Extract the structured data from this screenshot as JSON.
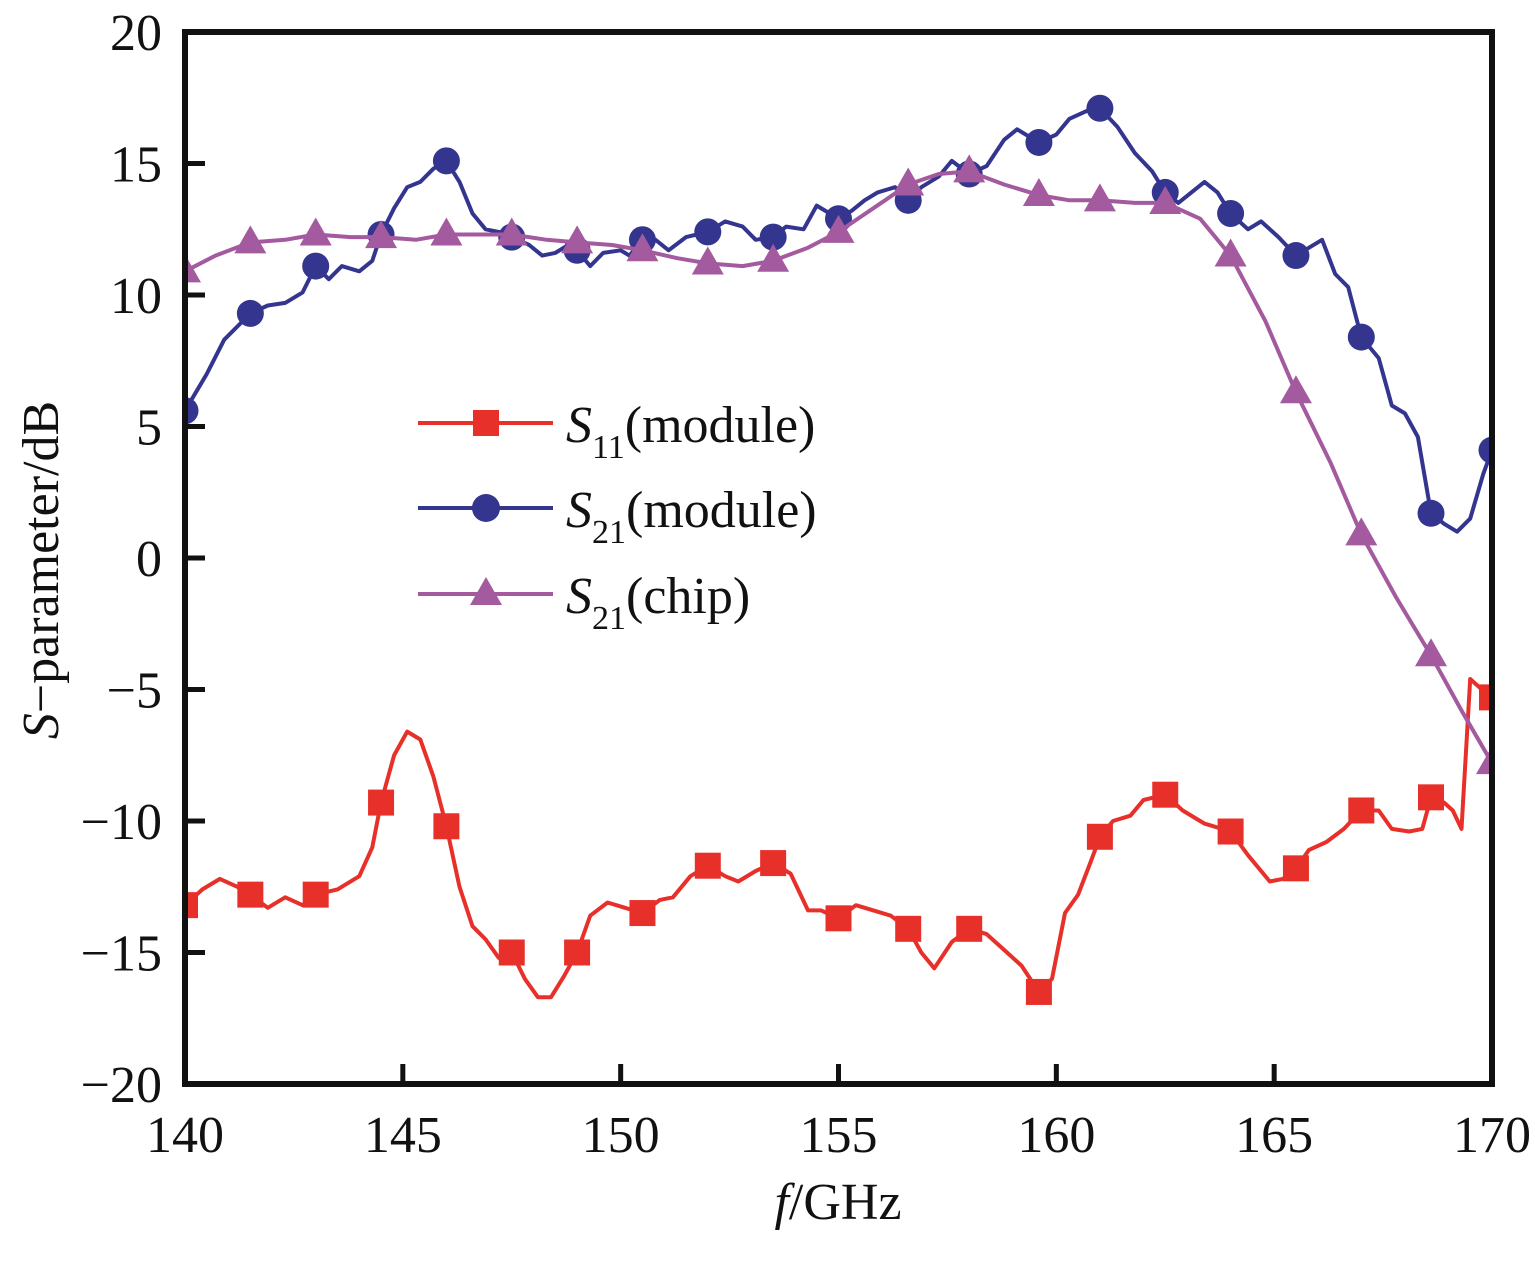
{
  "chart_data": {
    "type": "line",
    "xlabel": {
      "italic": "f",
      "rest": "/GHz"
    },
    "ylabel": {
      "italic": "S",
      "rest": "−parameter/dB"
    },
    "xlim": [
      140,
      170
    ],
    "ylim": [
      -20,
      20
    ],
    "xticks": [
      "140",
      "145",
      "150",
      "155",
      "160",
      "165",
      "170"
    ],
    "yticks": [
      "20",
      "15",
      "10",
      "5",
      "0",
      "−5",
      "−10",
      "−15",
      "−20"
    ],
    "legend_position": "center-left",
    "series": [
      {
        "name": "S11(module)",
        "legend": {
          "main": "S",
          "sub": "11",
          "suffix": "(module)"
        },
        "color": "#e8302a",
        "marker": "square",
        "points": [
          [
            140,
            -13.2
          ],
          [
            140.4,
            -12.6
          ],
          [
            140.8,
            -12.2
          ],
          [
            141.2,
            -12.5
          ],
          [
            141.5,
            -12.8
          ],
          [
            141.9,
            -13.3
          ],
          [
            142.3,
            -12.9
          ],
          [
            142.7,
            -13.2
          ],
          [
            143,
            -12.8
          ],
          [
            143.5,
            -12.6
          ],
          [
            144,
            -12.1
          ],
          [
            144.3,
            -11
          ],
          [
            144.5,
            -9.3
          ],
          [
            144.8,
            -7.5
          ],
          [
            145.1,
            -6.6
          ],
          [
            145.4,
            -6.9
          ],
          [
            145.7,
            -8.3
          ],
          [
            146,
            -10.2
          ],
          [
            146.3,
            -12.5
          ],
          [
            146.6,
            -14
          ],
          [
            146.9,
            -14.5
          ],
          [
            147.2,
            -15.2
          ],
          [
            147.5,
            -15
          ],
          [
            147.8,
            -16
          ],
          [
            148.1,
            -16.7
          ],
          [
            148.4,
            -16.7
          ],
          [
            148.7,
            -15.9
          ],
          [
            149,
            -15
          ],
          [
            149.3,
            -13.6
          ],
          [
            149.7,
            -13.1
          ],
          [
            150.1,
            -13.3
          ],
          [
            150.5,
            -13.5
          ],
          [
            150.9,
            -13
          ],
          [
            151.2,
            -12.9
          ],
          [
            151.6,
            -12.1
          ],
          [
            152,
            -11.7
          ],
          [
            152.4,
            -12.1
          ],
          [
            152.7,
            -12.3
          ],
          [
            153.1,
            -11.9
          ],
          [
            153.5,
            -11.6
          ],
          [
            153.9,
            -12
          ],
          [
            154.3,
            -13.4
          ],
          [
            154.6,
            -13.4
          ],
          [
            155,
            -13.7
          ],
          [
            155.4,
            -13.2
          ],
          [
            155.8,
            -13.4
          ],
          [
            156.2,
            -13.6
          ],
          [
            156.6,
            -14.1
          ],
          [
            156.9,
            -15
          ],
          [
            157.2,
            -15.6
          ],
          [
            157.6,
            -14.6
          ],
          [
            158,
            -14.1
          ],
          [
            158.4,
            -14.3
          ],
          [
            158.8,
            -14.9
          ],
          [
            159.2,
            -15.5
          ],
          [
            159.6,
            -16.5
          ],
          [
            159.9,
            -16
          ],
          [
            160.2,
            -13.5
          ],
          [
            160.5,
            -12.8
          ],
          [
            160.8,
            -11.5
          ],
          [
            161,
            -10.6
          ],
          [
            161.3,
            -10
          ],
          [
            161.7,
            -9.8
          ],
          [
            162,
            -9.2
          ],
          [
            162.5,
            -9
          ],
          [
            162.9,
            -9.6
          ],
          [
            163.4,
            -10.1
          ],
          [
            164,
            -10.4
          ],
          [
            164.4,
            -11.3
          ],
          [
            164.9,
            -12.3
          ],
          [
            165.2,
            -12.2
          ],
          [
            165.5,
            -11.8
          ],
          [
            165.8,
            -11.1
          ],
          [
            166.2,
            -10.8
          ],
          [
            166.6,
            -10.3
          ],
          [
            167,
            -9.6
          ],
          [
            167.4,
            -9.6
          ],
          [
            167.7,
            -10.3
          ],
          [
            168.1,
            -10.4
          ],
          [
            168.4,
            -10.3
          ],
          [
            168.6,
            -9.1
          ],
          [
            168.9,
            -9.3
          ],
          [
            169.1,
            -9.6
          ],
          [
            169.3,
            -10.3
          ],
          [
            169.5,
            -4.6
          ],
          [
            169.7,
            -4.9
          ],
          [
            170,
            -5.3
          ]
        ],
        "marker_x": [
          140,
          141.5,
          143,
          144.5,
          146,
          147.5,
          149,
          150.5,
          152,
          153.5,
          155,
          156.6,
          158,
          159.6,
          161,
          162.5,
          164,
          165.5,
          167,
          168.6,
          170
        ]
      },
      {
        "name": "S21(module)",
        "legend": {
          "main": "S",
          "sub": "21",
          "suffix": "(module)"
        },
        "color": "#33358f",
        "marker": "circle",
        "points": [
          [
            140,
            5.6
          ],
          [
            140.5,
            7
          ],
          [
            140.9,
            8.3
          ],
          [
            141.5,
            9.3
          ],
          [
            141.9,
            9.6
          ],
          [
            142.3,
            9.7
          ],
          [
            142.7,
            10.1
          ],
          [
            143,
            11.1
          ],
          [
            143.3,
            10.6
          ],
          [
            143.6,
            11.1
          ],
          [
            144,
            10.9
          ],
          [
            144.3,
            11.3
          ],
          [
            144.5,
            12.3
          ],
          [
            144.8,
            13.3
          ],
          [
            145.1,
            14.1
          ],
          [
            145.4,
            14.3
          ],
          [
            145.7,
            14.8
          ],
          [
            146,
            15.1
          ],
          [
            146.3,
            14.3
          ],
          [
            146.6,
            13.1
          ],
          [
            146.9,
            12.5
          ],
          [
            147.2,
            12.4
          ],
          [
            147.5,
            12.2
          ],
          [
            147.9,
            11.9
          ],
          [
            148.2,
            11.5
          ],
          [
            148.5,
            11.6
          ],
          [
            148.8,
            11.9
          ],
          [
            149,
            11.7
          ],
          [
            149.3,
            11.1
          ],
          [
            149.6,
            11.6
          ],
          [
            150,
            11.7
          ],
          [
            150.2,
            11.5
          ],
          [
            150.5,
            12.1
          ],
          [
            150.8,
            12.1
          ],
          [
            151.1,
            11.7
          ],
          [
            151.5,
            12.2
          ],
          [
            152,
            12.4
          ],
          [
            152.4,
            12.8
          ],
          [
            152.8,
            12.6
          ],
          [
            153.1,
            12.1
          ],
          [
            153.5,
            12.2
          ],
          [
            153.8,
            12.6
          ],
          [
            154.2,
            12.5
          ],
          [
            154.5,
            13.4
          ],
          [
            154.8,
            13.1
          ],
          [
            155,
            12.9
          ],
          [
            155.3,
            13.2
          ],
          [
            155.6,
            13.6
          ],
          [
            155.9,
            13.9
          ],
          [
            156.3,
            14.1
          ],
          [
            156.6,
            13.6
          ],
          [
            156.9,
            14.1
          ],
          [
            157.3,
            14.5
          ],
          [
            157.6,
            15.1
          ],
          [
            158,
            14.6
          ],
          [
            158.4,
            14.9
          ],
          [
            158.8,
            15.9
          ],
          [
            159.1,
            16.3
          ],
          [
            159.6,
            15.8
          ],
          [
            160,
            16.1
          ],
          [
            160.3,
            16.7
          ],
          [
            160.7,
            17
          ],
          [
            161,
            17.1
          ],
          [
            161.4,
            16.4
          ],
          [
            161.8,
            15.4
          ],
          [
            162.2,
            14.7
          ],
          [
            162.5,
            13.9
          ],
          [
            162.8,
            13.5
          ],
          [
            163.1,
            13.9
          ],
          [
            163.4,
            14.3
          ],
          [
            163.7,
            13.9
          ],
          [
            164,
            13.1
          ],
          [
            164.4,
            12.5
          ],
          [
            164.7,
            12.8
          ],
          [
            165.1,
            12.2
          ],
          [
            165.5,
            11.5
          ],
          [
            165.8,
            11.8
          ],
          [
            166.1,
            12.1
          ],
          [
            166.4,
            10.8
          ],
          [
            166.7,
            10.3
          ],
          [
            167,
            8.4
          ],
          [
            167.4,
            7.6
          ],
          [
            167.7,
            5.8
          ],
          [
            168,
            5.5
          ],
          [
            168.3,
            4.6
          ],
          [
            168.6,
            1.7
          ],
          [
            168.9,
            1.3
          ],
          [
            169.2,
            1.0
          ],
          [
            169.5,
            1.5
          ],
          [
            169.8,
            3.2
          ],
          [
            170,
            4.1
          ]
        ],
        "marker_x": [
          140,
          141.5,
          143,
          144.5,
          146,
          147.5,
          149,
          150.5,
          152,
          153.5,
          155,
          156.6,
          158,
          159.6,
          161,
          162.5,
          164,
          165.5,
          167,
          168.6,
          170
        ]
      },
      {
        "name": "S21(chip)",
        "legend": {
          "main": "S",
          "sub": "21",
          "suffix": "(chip)"
        },
        "color": "#a45a9e",
        "marker": "triangle",
        "points": [
          [
            140,
            10.9
          ],
          [
            140.7,
            11.5
          ],
          [
            141.5,
            12
          ],
          [
            142.3,
            12.1
          ],
          [
            143,
            12.3
          ],
          [
            143.8,
            12.2
          ],
          [
            144.5,
            12.2
          ],
          [
            145.3,
            12.1
          ],
          [
            146,
            12.3
          ],
          [
            146.8,
            12.3
          ],
          [
            147.5,
            12.3
          ],
          [
            148.3,
            12.1
          ],
          [
            149,
            12
          ],
          [
            149.8,
            11.9
          ],
          [
            150.5,
            11.7
          ],
          [
            151.3,
            11.4
          ],
          [
            152,
            11.2
          ],
          [
            152.8,
            11.1
          ],
          [
            153.5,
            11.3
          ],
          [
            154.3,
            11.8
          ],
          [
            155,
            12.4
          ],
          [
            155.8,
            13.3
          ],
          [
            156.6,
            14.2
          ],
          [
            157.3,
            14.6
          ],
          [
            158,
            14.7
          ],
          [
            158.8,
            14.2
          ],
          [
            159.6,
            13.8
          ],
          [
            160.3,
            13.6
          ],
          [
            161,
            13.6
          ],
          [
            161.8,
            13.5
          ],
          [
            162.5,
            13.5
          ],
          [
            163.3,
            12.9
          ],
          [
            164,
            11.5
          ],
          [
            164.8,
            9
          ],
          [
            165.5,
            6.3
          ],
          [
            166.3,
            3.6
          ],
          [
            167,
            0.9
          ],
          [
            167.8,
            -1.5
          ],
          [
            168.6,
            -3.7
          ],
          [
            169.3,
            -5.8
          ],
          [
            170,
            -7.8
          ]
        ],
        "marker_x": [
          140,
          141.5,
          143,
          144.5,
          146,
          147.5,
          149,
          150.5,
          152,
          153.5,
          155,
          156.6,
          158,
          159.6,
          161,
          162.5,
          164,
          165.5,
          167,
          168.6,
          170
        ]
      }
    ]
  }
}
